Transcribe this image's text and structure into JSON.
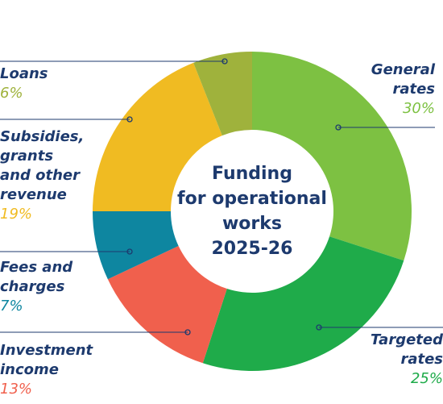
{
  "chart_data": {
    "type": "donut",
    "title": "Funding\nfor operational\nworks\n2025-26",
    "categories": [
      "General\nrates",
      "Targeted\nrates",
      "Investment\nincome",
      "Fees and\ncharges",
      "Subsidies,\ngrants\nand other\nrevenue",
      "Loans"
    ],
    "values": [
      30,
      25,
      13,
      7,
      19,
      6
    ],
    "value_labels": [
      "30%",
      "25%",
      "13%",
      "7%",
      "19%",
      "6%"
    ],
    "colors": [
      "#7dc142",
      "#1fab4a",
      "#f0604d",
      "#0e86a0",
      "#f0bb22",
      "#9fb23c"
    ]
  }
}
